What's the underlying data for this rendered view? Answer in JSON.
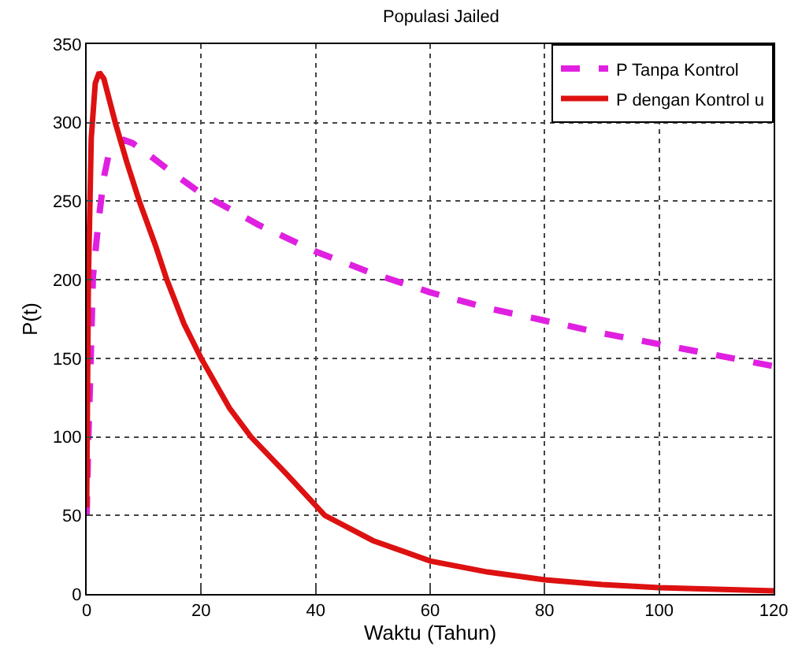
{
  "chart_data": {
    "type": "line",
    "title": "Populasi Jailed",
    "xlabel": "Waktu (Tahun)",
    "ylabel": "P(t)",
    "xlim": [
      0,
      120
    ],
    "xticks": [
      0,
      20,
      40,
      60,
      80,
      100,
      120
    ],
    "ylim": [
      0,
      350
    ],
    "yticks": [
      0,
      50,
      100,
      150,
      200,
      250,
      300,
      350
    ],
    "grid": true,
    "legend": "top right",
    "series": [
      {
        "name": "P Tanpa Kontrol",
        "color": "#e020e0",
        "line_style": "dashed",
        "x": [
          0,
          0.3,
          0.6,
          1.1,
          2,
          3,
          3.8,
          5,
          6.5,
          8,
          10,
          15,
          20,
          30,
          40,
          50,
          60,
          70,
          80,
          90,
          100,
          110,
          120
        ],
        "values": [
          50,
          100,
          135,
          202,
          235,
          265,
          279,
          286,
          289,
          287,
          282,
          268,
          255,
          235,
          218,
          204,
          192,
          182,
          174,
          166,
          159,
          152,
          145
        ]
      },
      {
        "name": "P dengan Kontrol u",
        "color": "#dd1111",
        "line_style": "solid",
        "x": [
          0,
          0.3,
          0.8,
          1.5,
          2.2,
          3,
          5,
          7,
          9.2,
          12,
          14,
          17,
          20,
          25,
          28.7,
          35,
          41.6,
          50,
          60,
          70,
          80,
          90,
          100,
          110,
          120
        ],
        "values": [
          55,
          200,
          290,
          325,
          332,
          328,
          300,
          275,
          250,
          222,
          200,
          172,
          150,
          118,
          100,
          76,
          50,
          34,
          21,
          14,
          9,
          6,
          4,
          3,
          2
        ]
      }
    ]
  }
}
